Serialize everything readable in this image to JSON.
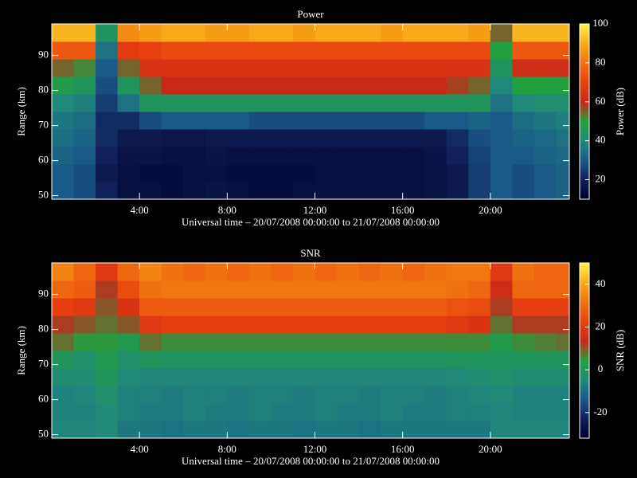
{
  "chart_data": [
    {
      "type": "heatmap",
      "title": "Power",
      "xlabel": "Universal time – 20/07/2008 00:00:00 to 21/07/2008 00:00:00",
      "ylabel": "Range (km)",
      "colorbar_label": "Power (dB)",
      "xlim": [
        0,
        23.6
      ],
      "xticks": [
        {
          "value": 4,
          "label": "4:00"
        },
        {
          "value": 8,
          "label": "8:00"
        },
        {
          "value": 12,
          "label": "12:00"
        },
        {
          "value": 16,
          "label": "16:00"
        },
        {
          "value": 20,
          "label": "20:00"
        }
      ],
      "ylim": [
        49,
        99
      ],
      "yticks": [
        50,
        60,
        70,
        80,
        90
      ],
      "clim": [
        10,
        100
      ],
      "cticks": [
        20,
        40,
        60,
        80,
        100
      ],
      "colormap": [
        "#000028",
        "#10205a",
        "#1a5a88",
        "#20887a",
        "#22a040",
        "#c82818",
        "#e84010",
        "#f07010",
        "#f8a818",
        "#fff040"
      ],
      "x": [
        0,
        1,
        2,
        3,
        4,
        5,
        6,
        7,
        8,
        9,
        10,
        11,
        12,
        13,
        14,
        15,
        16,
        17,
        18,
        19,
        20,
        21,
        22,
        23
      ],
      "y": [
        49,
        54,
        59,
        64,
        69,
        74,
        79,
        84,
        89,
        94
      ],
      "z": [
        [
          30,
          28,
          20,
          15,
          15,
          14,
          15,
          16,
          15,
          14,
          14,
          15,
          15,
          15,
          15,
          15,
          15,
          16,
          18,
          25,
          30,
          28,
          30,
          32
        ],
        [
          30,
          28,
          18,
          15,
          14,
          14,
          15,
          15,
          14,
          14,
          14,
          14,
          15,
          15,
          15,
          15,
          15,
          16,
          18,
          25,
          30,
          28,
          30,
          32
        ],
        [
          32,
          30,
          20,
          16,
          16,
          15,
          15,
          16,
          15,
          15,
          15,
          15,
          15,
          15,
          15,
          15,
          15,
          16,
          20,
          26,
          30,
          30,
          32,
          33
        ],
        [
          34,
          32,
          22,
          18,
          18,
          17,
          17,
          18,
          18,
          18,
          18,
          18,
          18,
          18,
          18,
          18,
          18,
          18,
          22,
          28,
          30,
          32,
          33,
          35
        ],
        [
          36,
          34,
          22,
          22,
          28,
          30,
          30,
          30,
          30,
          28,
          28,
          28,
          28,
          28,
          28,
          28,
          28,
          30,
          30,
          32,
          30,
          34,
          36,
          38
        ],
        [
          40,
          38,
          25,
          35,
          45,
          45,
          45,
          45,
          45,
          45,
          45,
          45,
          45,
          45,
          45,
          45,
          45,
          45,
          45,
          45,
          35,
          40,
          42,
          42
        ],
        [
          48,
          45,
          28,
          45,
          55,
          60,
          60,
          60,
          60,
          60,
          60,
          60,
          60,
          60,
          60,
          60,
          60,
          60,
          58,
          55,
          40,
          50,
          50,
          50
        ],
        [
          55,
          52,
          30,
          55,
          65,
          65,
          65,
          65,
          65,
          65,
          65,
          65,
          65,
          65,
          65,
          65,
          65,
          65,
          65,
          65,
          45,
          62,
          62,
          62
        ],
        [
          75,
          75,
          35,
          68,
          70,
          72,
          72,
          72,
          72,
          72,
          72,
          72,
          72,
          72,
          72,
          72,
          72,
          72,
          72,
          72,
          50,
          75,
          75,
          75
        ],
        [
          92,
          92,
          45,
          85,
          88,
          90,
          90,
          88,
          88,
          90,
          90,
          88,
          90,
          90,
          90,
          88,
          90,
          90,
          90,
          88,
          55,
          92,
          92,
          92
        ]
      ]
    },
    {
      "type": "heatmap",
      "title": "SNR",
      "xlabel": "Universal time – 20/07/2008 00:00:00 to 21/07/2008 00:00:00",
      "ylabel": "Range (km)",
      "colorbar_label": "SNR (dB)",
      "xlim": [
        0,
        23.6
      ],
      "xticks": [
        {
          "value": 4,
          "label": "4:00"
        },
        {
          "value": 8,
          "label": "8:00"
        },
        {
          "value": 12,
          "label": "12:00"
        },
        {
          "value": 16,
          "label": "16:00"
        },
        {
          "value": 20,
          "label": "20:00"
        }
      ],
      "ylim": [
        49,
        99
      ],
      "yticks": [
        50,
        60,
        70,
        80,
        90
      ],
      "clim": [
        -32,
        50
      ],
      "cticks": [
        -20,
        0,
        20,
        40
      ],
      "colormap": [
        "#000028",
        "#10205a",
        "#1a5a88",
        "#20887a",
        "#22a040",
        "#c82818",
        "#e84010",
        "#f07010",
        "#f8a818",
        "#fff040"
      ],
      "x": [
        0,
        1,
        2,
        3,
        4,
        5,
        6,
        7,
        8,
        9,
        10,
        11,
        12,
        13,
        14,
        15,
        16,
        17,
        18,
        19,
        20,
        21,
        22,
        23
      ],
      "y": [
        49,
        54,
        59,
        64,
        69,
        74,
        79,
        84,
        89,
        94
      ],
      "z": [
        [
          -5,
          -5,
          -4,
          -8,
          -8,
          -9,
          -8,
          -8,
          -9,
          -8,
          -8,
          -9,
          -8,
          -8,
          -9,
          -8,
          -8,
          -8,
          -8,
          -8,
          -5,
          -5,
          -5,
          -5
        ],
        [
          -6,
          -6,
          -4,
          -6,
          -7,
          -7,
          -6,
          -7,
          -7,
          -6,
          -7,
          -7,
          -6,
          -7,
          -7,
          -6,
          -7,
          -7,
          -6,
          -6,
          -5,
          -6,
          -6,
          -6
        ],
        [
          -6,
          -5,
          -2,
          -6,
          -6,
          -7,
          -6,
          -6,
          -7,
          -6,
          -6,
          -7,
          -6,
          -6,
          -7,
          -6,
          -6,
          -7,
          -6,
          -5,
          -4,
          -6,
          -6,
          -6
        ],
        [
          -3,
          -3,
          0,
          -4,
          -5,
          -5,
          -5,
          -5,
          -5,
          -5,
          -5,
          -5,
          -5,
          -5,
          -5,
          -5,
          -5,
          -5,
          -4,
          -3,
          -2,
          -3,
          -3,
          -3
        ],
        [
          0,
          -2,
          2,
          -2,
          0,
          -1,
          -1,
          -1,
          -1,
          -1,
          -1,
          -1,
          -1,
          -1,
          -1,
          -1,
          -1,
          -1,
          0,
          0,
          0,
          0,
          0,
          0
        ],
        [
          8,
          5,
          5,
          2,
          8,
          6,
          6,
          6,
          6,
          6,
          6,
          6,
          6,
          6,
          6,
          6,
          6,
          6,
          6,
          6,
          3,
          6,
          7,
          8
        ],
        [
          12,
          10,
          8,
          10,
          20,
          22,
          22,
          22,
          22,
          22,
          22,
          22,
          22,
          22,
          22,
          22,
          22,
          22,
          20,
          18,
          8,
          12,
          12,
          12
        ],
        [
          22,
          20,
          10,
          18,
          28,
          28,
          28,
          28,
          28,
          28,
          28,
          28,
          28,
          28,
          28,
          28,
          28,
          28,
          26,
          25,
          12,
          22,
          22,
          22
        ],
        [
          30,
          28,
          12,
          25,
          32,
          33,
          33,
          33,
          33,
          33,
          33,
          33,
          33,
          33,
          33,
          33,
          33,
          33,
          32,
          30,
          15,
          30,
          30,
          30
        ],
        [
          35,
          30,
          20,
          30,
          35,
          32,
          30,
          32,
          30,
          32,
          30,
          32,
          30,
          32,
          30,
          32,
          30,
          32,
          33,
          33,
          20,
          32,
          30,
          30
        ]
      ]
    }
  ]
}
